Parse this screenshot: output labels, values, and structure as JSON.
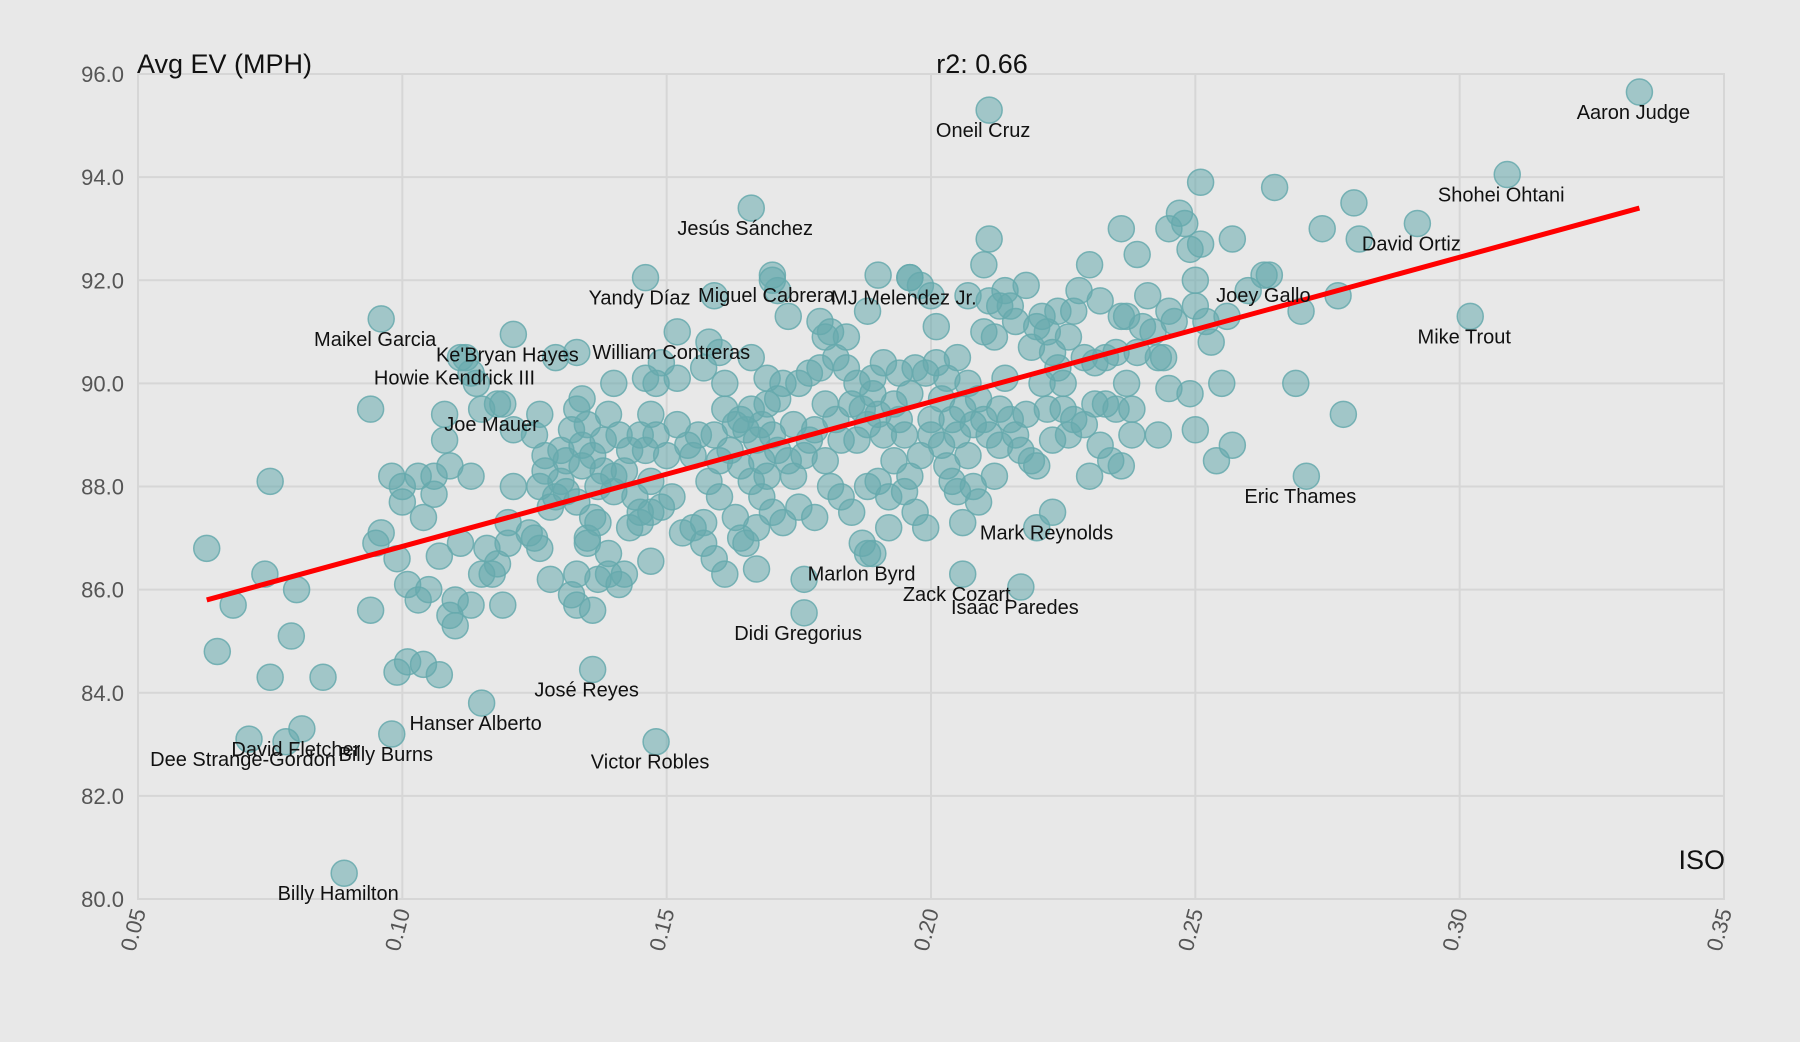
{
  "chart_data": {
    "type": "scatter",
    "title": "r2: 0.66",
    "xlabel": "ISO",
    "ylabel": "Avg EV (MPH)",
    "xlim": [
      0.05,
      0.35
    ],
    "ylim": [
      80.0,
      96.0
    ],
    "x_ticks": [
      "0.05",
      "0.10",
      "0.15",
      "0.20",
      "0.25",
      "0.30",
      "0.35"
    ],
    "y_ticks": [
      "80.0",
      "82.0",
      "84.0",
      "86.0",
      "88.0",
      "90.0",
      "92.0",
      "94.0",
      "96.0"
    ],
    "grid": true,
    "point_color": "#66a9ad",
    "trend_color": "#ff0000",
    "trendline": {
      "x": [
        0.063,
        0.334
      ],
      "y": [
        85.8,
        93.4
      ]
    },
    "labeled_points": [
      {
        "name": "Aaron Judge",
        "x": 0.334,
        "y": 95.65
      },
      {
        "name": "Shohei Ohtani",
        "x": 0.309,
        "y": 94.05
      },
      {
        "name": "David Ortiz",
        "x": 0.292,
        "y": 93.1
      },
      {
        "name": "Mike Trout",
        "x": 0.302,
        "y": 91.3
      },
      {
        "name": "Joey Gallo",
        "x": 0.264,
        "y": 92.1
      },
      {
        "name": "Eric Thames",
        "x": 0.271,
        "y": 88.2
      },
      {
        "name": "Oneil Cruz",
        "x": 0.211,
        "y": 95.3
      },
      {
        "name": "Jesús Sánchez",
        "x": 0.166,
        "y": 93.4
      },
      {
        "name": "Miguel Cabrera",
        "x": 0.17,
        "y": 92.1
      },
      {
        "name": "Yandy Díaz",
        "x": 0.146,
        "y": 92.05
      },
      {
        "name": "MJ Melendez Jr.",
        "x": 0.196,
        "y": 92.05
      },
      {
        "name": "William Contreras",
        "x": 0.152,
        "y": 91.0
      },
      {
        "name": "Maikel Garcia",
        "x": 0.096,
        "y": 91.25
      },
      {
        "name": "Ke'Bryan Hayes",
        "x": 0.121,
        "y": 90.95
      },
      {
        "name": "Howie Kendrick III",
        "x": 0.111,
        "y": 90.5
      },
      {
        "name": "Joe Mauer",
        "x": 0.118,
        "y": 89.6
      },
      {
        "name": "Mark Reynolds",
        "x": 0.223,
        "y": 87.5
      },
      {
        "name": "Marlon Byrd",
        "x": 0.188,
        "y": 86.7
      },
      {
        "name": "Zack Cozart",
        "x": 0.206,
        "y": 86.3
      },
      {
        "name": "Isaac Paredes",
        "x": 0.217,
        "y": 86.05
      },
      {
        "name": "Didi Gregorius",
        "x": 0.176,
        "y": 85.55
      },
      {
        "name": "José Reyes",
        "x": 0.136,
        "y": 84.45
      },
      {
        "name": "Hanser Alberto",
        "x": 0.115,
        "y": 83.8
      },
      {
        "name": "Victor Robles",
        "x": 0.148,
        "y": 83.05
      },
      {
        "name": "David Fletcher",
        "x": 0.081,
        "y": 83.3
      },
      {
        "name": "Dee Strange-Gordon",
        "x": 0.071,
        "y": 83.1
      },
      {
        "name": "Billy Burns",
        "x": 0.098,
        "y": 83.2
      },
      {
        "name": "Billy Hamilton",
        "x": 0.089,
        "y": 80.5
      }
    ],
    "points": [
      [
        0.063,
        86.8
      ],
      [
        0.065,
        84.8
      ],
      [
        0.068,
        85.7
      ],
      [
        0.074,
        86.3
      ],
      [
        0.075,
        84.3
      ],
      [
        0.075,
        88.1
      ],
      [
        0.078,
        83.05
      ],
      [
        0.079,
        85.1
      ],
      [
        0.08,
        86.0
      ],
      [
        0.085,
        84.3
      ],
      [
        0.094,
        89.5
      ],
      [
        0.094,
        85.6
      ],
      [
        0.095,
        86.9
      ],
      [
        0.096,
        87.1
      ],
      [
        0.098,
        88.2
      ],
      [
        0.099,
        86.6
      ],
      [
        0.099,
        84.4
      ],
      [
        0.1,
        87.7
      ],
      [
        0.1,
        88.0
      ],
      [
        0.101,
        84.6
      ],
      [
        0.101,
        86.1
      ],
      [
        0.103,
        88.2
      ],
      [
        0.103,
        85.8
      ],
      [
        0.104,
        87.4
      ],
      [
        0.104,
        84.55
      ],
      [
        0.105,
        86.0
      ],
      [
        0.106,
        88.2
      ],
      [
        0.106,
        87.85
      ],
      [
        0.107,
        86.65
      ],
      [
        0.107,
        84.35
      ],
      [
        0.108,
        89.4
      ],
      [
        0.108,
        88.9
      ],
      [
        0.109,
        85.5
      ],
      [
        0.109,
        88.4
      ],
      [
        0.11,
        85.8
      ],
      [
        0.11,
        85.3
      ],
      [
        0.111,
        86.9
      ],
      [
        0.112,
        90.5
      ],
      [
        0.113,
        88.2
      ],
      [
        0.113,
        90.2
      ],
      [
        0.113,
        85.7
      ],
      [
        0.114,
        90.0
      ],
      [
        0.115,
        89.5
      ],
      [
        0.115,
        86.3
      ],
      [
        0.116,
        86.8
      ],
      [
        0.117,
        86.3
      ],
      [
        0.118,
        86.5
      ],
      [
        0.119,
        85.7
      ],
      [
        0.119,
        89.6
      ],
      [
        0.12,
        86.9
      ],
      [
        0.12,
        87.3
      ],
      [
        0.121,
        88.0
      ],
      [
        0.121,
        89.1
      ],
      [
        0.124,
        87.1
      ],
      [
        0.125,
        87.0
      ],
      [
        0.125,
        89.0
      ],
      [
        0.126,
        86.8
      ],
      [
        0.126,
        88.0
      ],
      [
        0.126,
        89.4
      ],
      [
        0.127,
        88.3
      ],
      [
        0.127,
        88.6
      ],
      [
        0.128,
        87.6
      ],
      [
        0.128,
        86.2
      ],
      [
        0.129,
        90.5
      ],
      [
        0.129,
        87.8
      ],
      [
        0.13,
        88.1
      ],
      [
        0.13,
        88.7
      ],
      [
        0.131,
        87.9
      ],
      [
        0.131,
        88.5
      ],
      [
        0.132,
        89.1
      ],
      [
        0.132,
        85.9
      ],
      [
        0.133,
        90.6
      ],
      [
        0.133,
        89.5
      ],
      [
        0.133,
        87.7
      ],
      [
        0.133,
        86.3
      ],
      [
        0.133,
        85.7
      ],
      [
        0.134,
        89.7
      ],
      [
        0.134,
        88.8
      ],
      [
        0.134,
        88.4
      ],
      [
        0.135,
        89.2
      ],
      [
        0.135,
        87.0
      ],
      [
        0.135,
        86.9
      ],
      [
        0.136,
        88.6
      ],
      [
        0.136,
        87.4
      ],
      [
        0.136,
        85.6
      ],
      [
        0.137,
        88.0
      ],
      [
        0.137,
        87.3
      ],
      [
        0.137,
        86.2
      ],
      [
        0.138,
        88.3
      ],
      [
        0.138,
        88.9
      ],
      [
        0.139,
        86.3
      ],
      [
        0.139,
        86.7
      ],
      [
        0.139,
        89.4
      ],
      [
        0.14,
        90.0
      ],
      [
        0.14,
        88.2
      ],
      [
        0.14,
        87.9
      ],
      [
        0.141,
        86.1
      ],
      [
        0.141,
        89.0
      ],
      [
        0.142,
        88.3
      ],
      [
        0.142,
        86.3
      ],
      [
        0.143,
        88.7
      ],
      [
        0.143,
        87.2
      ],
      [
        0.144,
        87.8
      ],
      [
        0.145,
        87.5
      ],
      [
        0.145,
        89.0
      ],
      [
        0.145,
        87.3
      ],
      [
        0.146,
        88.7
      ],
      [
        0.146,
        90.1
      ],
      [
        0.147,
        89.4
      ],
      [
        0.147,
        88.1
      ],
      [
        0.147,
        87.5
      ],
      [
        0.147,
        86.55
      ],
      [
        0.148,
        89.0
      ],
      [
        0.148,
        90.0
      ],
      [
        0.149,
        90.4
      ],
      [
        0.149,
        87.6
      ],
      [
        0.15,
        88.6
      ],
      [
        0.151,
        87.8
      ],
      [
        0.152,
        90.1
      ],
      [
        0.152,
        89.2
      ],
      [
        0.153,
        87.1
      ],
      [
        0.154,
        88.8
      ],
      [
        0.155,
        87.2
      ],
      [
        0.155,
        88.6
      ],
      [
        0.156,
        89.0
      ],
      [
        0.157,
        87.3
      ],
      [
        0.157,
        90.3
      ],
      [
        0.157,
        86.9
      ],
      [
        0.158,
        90.8
      ],
      [
        0.158,
        88.1
      ],
      [
        0.159,
        91.7
      ],
      [
        0.159,
        89.0
      ],
      [
        0.159,
        86.6
      ],
      [
        0.16,
        90.6
      ],
      [
        0.16,
        88.5
      ],
      [
        0.16,
        87.8
      ],
      [
        0.161,
        89.5
      ],
      [
        0.161,
        90.0
      ],
      [
        0.161,
        86.3
      ],
      [
        0.162,
        88.7
      ],
      [
        0.163,
        89.2
      ],
      [
        0.163,
        87.4
      ],
      [
        0.164,
        89.3
      ],
      [
        0.164,
        87.0
      ],
      [
        0.164,
        88.4
      ],
      [
        0.165,
        89.1
      ],
      [
        0.165,
        86.9
      ],
      [
        0.166,
        90.5
      ],
      [
        0.166,
        89.5
      ],
      [
        0.166,
        88.1
      ],
      [
        0.167,
        88.9
      ],
      [
        0.167,
        87.2
      ],
      [
        0.167,
        86.4
      ],
      [
        0.168,
        89.2
      ],
      [
        0.168,
        88.5
      ],
      [
        0.168,
        87.8
      ],
      [
        0.169,
        90.1
      ],
      [
        0.169,
        89.6
      ],
      [
        0.169,
        88.2
      ],
      [
        0.17,
        92.0
      ],
      [
        0.17,
        89.0
      ],
      [
        0.17,
        87.5
      ],
      [
        0.171,
        91.8
      ],
      [
        0.171,
        89.7
      ],
      [
        0.171,
        88.7
      ],
      [
        0.172,
        87.3
      ],
      [
        0.172,
        90.0
      ],
      [
        0.173,
        91.3
      ],
      [
        0.173,
        88.5
      ],
      [
        0.174,
        88.2
      ],
      [
        0.174,
        89.2
      ],
      [
        0.175,
        87.6
      ],
      [
        0.175,
        90.0
      ],
      [
        0.176,
        88.6
      ],
      [
        0.176,
        86.2
      ],
      [
        0.177,
        90.2
      ],
      [
        0.177,
        88.9
      ],
      [
        0.178,
        87.4
      ],
      [
        0.178,
        89.1
      ],
      [
        0.179,
        90.3
      ],
      [
        0.179,
        91.2
      ],
      [
        0.18,
        90.9
      ],
      [
        0.18,
        89.6
      ],
      [
        0.18,
        88.5
      ],
      [
        0.181,
        88.0
      ],
      [
        0.181,
        91.0
      ],
      [
        0.182,
        90.5
      ],
      [
        0.182,
        89.3
      ],
      [
        0.183,
        87.8
      ],
      [
        0.183,
        88.9
      ],
      [
        0.184,
        90.3
      ],
      [
        0.184,
        90.9
      ],
      [
        0.185,
        89.6
      ],
      [
        0.185,
        87.5
      ],
      [
        0.186,
        88.9
      ],
      [
        0.186,
        90.0
      ],
      [
        0.187,
        89.5
      ],
      [
        0.187,
        86.9
      ],
      [
        0.188,
        91.4
      ],
      [
        0.188,
        89.2
      ],
      [
        0.188,
        88.0
      ],
      [
        0.189,
        89.8
      ],
      [
        0.189,
        90.1
      ],
      [
        0.189,
        86.7
      ],
      [
        0.19,
        92.1
      ],
      [
        0.19,
        89.4
      ],
      [
        0.19,
        88.1
      ],
      [
        0.191,
        90.4
      ],
      [
        0.191,
        89.0
      ],
      [
        0.192,
        87.8
      ],
      [
        0.192,
        87.2
      ],
      [
        0.193,
        89.6
      ],
      [
        0.193,
        88.5
      ],
      [
        0.194,
        90.2
      ],
      [
        0.194,
        89.3
      ],
      [
        0.195,
        89.0
      ],
      [
        0.195,
        87.9
      ],
      [
        0.196,
        92.05
      ],
      [
        0.196,
        89.8
      ],
      [
        0.196,
        88.2
      ],
      [
        0.197,
        90.3
      ],
      [
        0.197,
        87.5
      ],
      [
        0.198,
        91.9
      ],
      [
        0.198,
        88.6
      ],
      [
        0.199,
        90.2
      ],
      [
        0.199,
        87.2
      ],
      [
        0.2,
        91.7
      ],
      [
        0.2,
        89.3
      ],
      [
        0.2,
        89.0
      ],
      [
        0.201,
        90.4
      ],
      [
        0.201,
        91.1
      ],
      [
        0.202,
        88.8
      ],
      [
        0.202,
        89.7
      ],
      [
        0.203,
        88.4
      ],
      [
        0.203,
        90.1
      ],
      [
        0.204,
        89.3
      ],
      [
        0.204,
        88.1
      ],
      [
        0.205,
        90.5
      ],
      [
        0.205,
        89.0
      ],
      [
        0.205,
        87.9
      ],
      [
        0.206,
        89.5
      ],
      [
        0.206,
        87.3
      ],
      [
        0.207,
        91.7
      ],
      [
        0.207,
        90.0
      ],
      [
        0.207,
        88.6
      ],
      [
        0.208,
        89.2
      ],
      [
        0.208,
        88.0
      ],
      [
        0.209,
        89.7
      ],
      [
        0.209,
        87.7
      ],
      [
        0.21,
        92.3
      ],
      [
        0.21,
        91.0
      ],
      [
        0.21,
        89.3
      ],
      [
        0.211,
        92.8
      ],
      [
        0.211,
        91.6
      ],
      [
        0.211,
        89.0
      ],
      [
        0.212,
        90.9
      ],
      [
        0.212,
        88.2
      ],
      [
        0.213,
        91.5
      ],
      [
        0.213,
        89.5
      ],
      [
        0.213,
        88.8
      ],
      [
        0.214,
        91.8
      ],
      [
        0.214,
        90.1
      ],
      [
        0.215,
        89.3
      ],
      [
        0.215,
        91.5
      ],
      [
        0.216,
        89.0
      ],
      [
        0.216,
        91.2
      ],
      [
        0.217,
        88.7
      ],
      [
        0.218,
        91.9
      ],
      [
        0.218,
        89.4
      ],
      [
        0.219,
        90.7
      ],
      [
        0.219,
        88.5
      ],
      [
        0.22,
        91.1
      ],
      [
        0.22,
        88.4
      ],
      [
        0.22,
        87.2
      ],
      [
        0.221,
        91.3
      ],
      [
        0.221,
        90.0
      ],
      [
        0.222,
        89.5
      ],
      [
        0.222,
        91.0
      ],
      [
        0.223,
        90.6
      ],
      [
        0.223,
        88.9
      ],
      [
        0.224,
        91.4
      ],
      [
        0.224,
        90.3
      ],
      [
        0.225,
        90.0
      ],
      [
        0.225,
        89.5
      ],
      [
        0.226,
        90.9
      ],
      [
        0.226,
        89.0
      ],
      [
        0.227,
        91.4
      ],
      [
        0.227,
        89.3
      ],
      [
        0.228,
        91.8
      ],
      [
        0.229,
        90.5
      ],
      [
        0.229,
        89.2
      ],
      [
        0.23,
        92.3
      ],
      [
        0.23,
        88.2
      ],
      [
        0.231,
        90.4
      ],
      [
        0.231,
        89.6
      ],
      [
        0.232,
        91.6
      ],
      [
        0.232,
        88.8
      ],
      [
        0.233,
        90.5
      ],
      [
        0.233,
        89.6
      ],
      [
        0.234,
        88.5
      ],
      [
        0.235,
        90.6
      ],
      [
        0.235,
        89.5
      ],
      [
        0.236,
        91.3
      ],
      [
        0.236,
        88.4
      ],
      [
        0.236,
        93.0
      ],
      [
        0.237,
        91.3
      ],
      [
        0.237,
        90.0
      ],
      [
        0.238,
        89.5
      ],
      [
        0.238,
        89.0
      ],
      [
        0.239,
        92.5
      ],
      [
        0.239,
        90.6
      ],
      [
        0.24,
        91.1
      ],
      [
        0.241,
        91.7
      ],
      [
        0.242,
        91.0
      ],
      [
        0.243,
        90.5
      ],
      [
        0.243,
        89.0
      ],
      [
        0.244,
        90.5
      ],
      [
        0.245,
        93.0
      ],
      [
        0.245,
        91.4
      ],
      [
        0.245,
        89.9
      ],
      [
        0.246,
        91.2
      ],
      [
        0.247,
        93.3
      ],
      [
        0.248,
        93.1
      ],
      [
        0.249,
        89.8
      ],
      [
        0.249,
        92.6
      ],
      [
        0.25,
        92.0
      ],
      [
        0.25,
        91.5
      ],
      [
        0.25,
        89.1
      ],
      [
        0.251,
        93.9
      ],
      [
        0.251,
        92.7
      ],
      [
        0.252,
        91.2
      ],
      [
        0.253,
        90.8
      ],
      [
        0.254,
        88.5
      ],
      [
        0.255,
        90.0
      ],
      [
        0.256,
        91.3
      ],
      [
        0.257,
        88.8
      ],
      [
        0.257,
        92.8
      ],
      [
        0.26,
        91.8
      ],
      [
        0.263,
        92.1
      ],
      [
        0.265,
        93.8
      ],
      [
        0.269,
        90.0
      ],
      [
        0.27,
        91.4
      ],
      [
        0.274,
        93.0
      ],
      [
        0.277,
        91.7
      ],
      [
        0.278,
        89.4
      ],
      [
        0.28,
        93.5
      ],
      [
        0.281,
        92.8
      ]
    ]
  }
}
